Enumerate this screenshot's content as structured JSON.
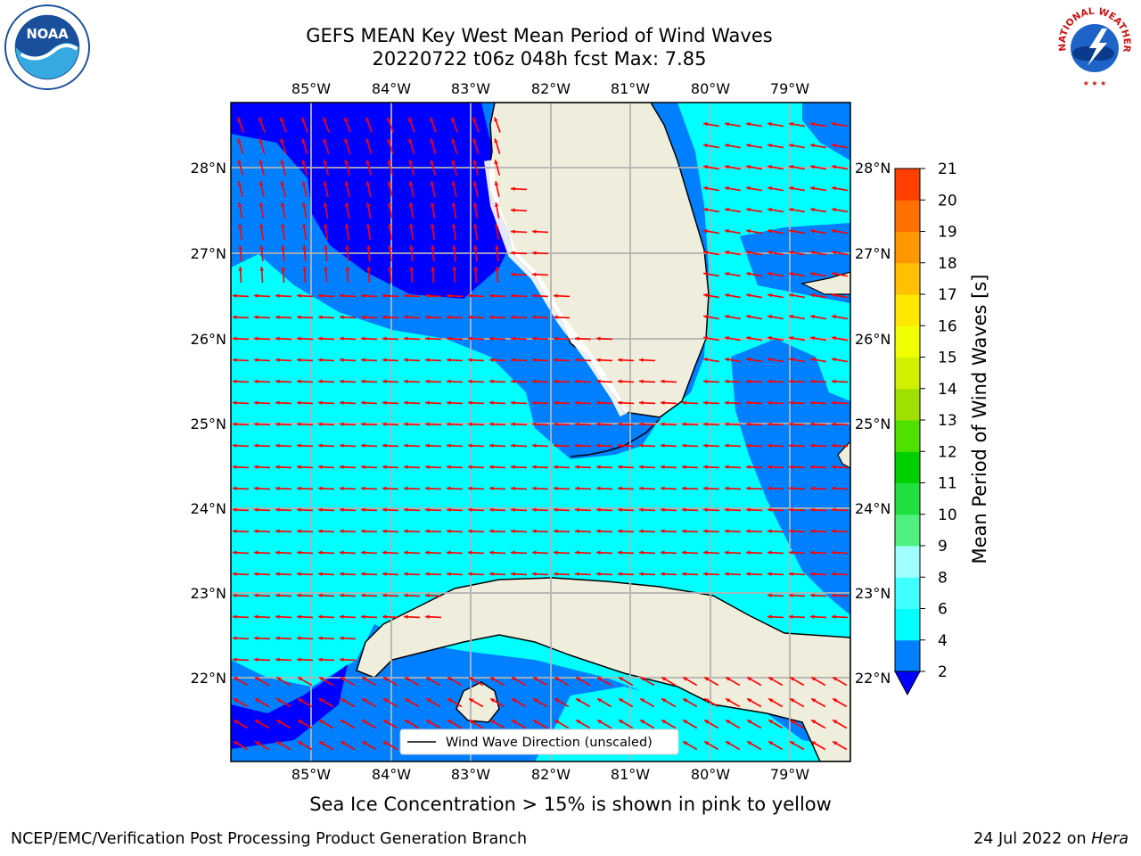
{
  "title": {
    "line1": "GEFS MEAN Key West Mean Period of Wind Waves",
    "line2": "20220722 t06z 048h fcst   Max: 7.85"
  },
  "map": {
    "lon_labels": [
      "85°W",
      "84°W",
      "83°W",
      "82°W",
      "81°W",
      "80°W",
      "79°W"
    ],
    "lat_labels": [
      "28°N",
      "27°N",
      "26°N",
      "25°N",
      "24°N",
      "23°N",
      "22°N"
    ],
    "legend_label": "Wind Wave Direction (unscaled)",
    "colors": {
      "ocean_cyan": "#00ffff",
      "ocean_blue": "#0080ff",
      "ocean_dark": "#0000ff",
      "land": "#efeddc",
      "arrows": "#ff0000",
      "grid": "#b3b3b3"
    }
  },
  "colorbar": {
    "label": "Mean Period of Wind Waves [s]",
    "ticks": [
      "2",
      "4",
      "6",
      "8",
      "9",
      "10",
      "11",
      "12",
      "13",
      "14",
      "15",
      "16",
      "17",
      "18",
      "19",
      "20",
      "21"
    ],
    "colors": [
      "#0080ff",
      "#00ffff",
      "#40ffff",
      "#a0ffff",
      "#50f080",
      "#20e040",
      "#00d000",
      "#50e000",
      "#a0e000",
      "#d0f000",
      "#f0ff00",
      "#ffe800",
      "#ffc000",
      "#ff9800",
      "#ff7000",
      "#ff4000",
      "#ff1000"
    ],
    "extend_color": "#0000ff"
  },
  "logos": {
    "noaa_text": "NOAA",
    "nws_text": "NATIONAL WEATHER SERVICE"
  },
  "note": "Sea Ice Concentration > 15% is shown in pink to yellow",
  "footer": {
    "left": "NCEP/EMC/Verification Post Processing Product Generation Branch",
    "date": "24 Jul 2022 on ",
    "machine": "Hera"
  }
}
